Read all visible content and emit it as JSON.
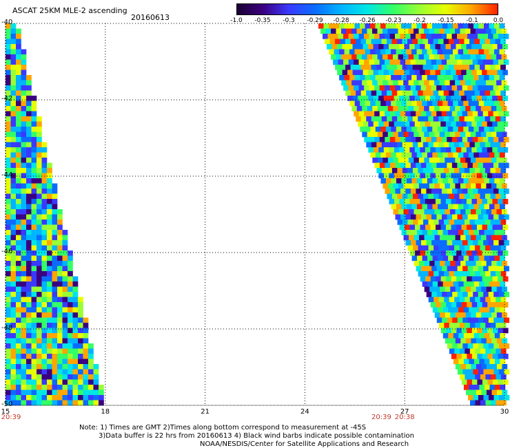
{
  "title": "ASCAT 25KM MLE-2 ascending",
  "date": "20160613",
  "colorbar": {
    "labels": [
      "-1.0",
      "-0.35",
      "-0.3",
      "-0.29",
      "-0.28",
      "-0.26",
      "-0.23",
      "-0.2",
      "-0.15",
      "-0.1",
      "0.0"
    ],
    "colors": [
      "#1a0033",
      "#3b0080",
      "#3a3aff",
      "#0a6cff",
      "#00b4ff",
      "#00e6e6",
      "#33ff66",
      "#99ff33",
      "#e6ff00",
      "#ffa500",
      "#ff2200"
    ]
  },
  "map": {
    "lon_ticks": [
      "15",
      "18",
      "21",
      "24",
      "27",
      "30"
    ],
    "lat_ticks": [
      "-40",
      "-42",
      "-44",
      "-46",
      "-48",
      "-50"
    ],
    "lon_range": [
      15,
      30
    ],
    "lat_range": [
      -50,
      -40
    ],
    "grid": true
  },
  "times": [
    {
      "label": "20:39",
      "lon": 15
    },
    {
      "label": "20:39",
      "lon": 26.3
    },
    {
      "label": "20:38",
      "lon": 27
    }
  ],
  "notes": [
    "Note: 1) Times are GMT 2)Times along bottom correspond to measurement at -45S",
    "3)Data buffer is 22 hrs from 20160613 4) Black wind barbs indicate possible contamination",
    "NOAA/NESDIS/Center for Satellite Applications and Research"
  ]
}
